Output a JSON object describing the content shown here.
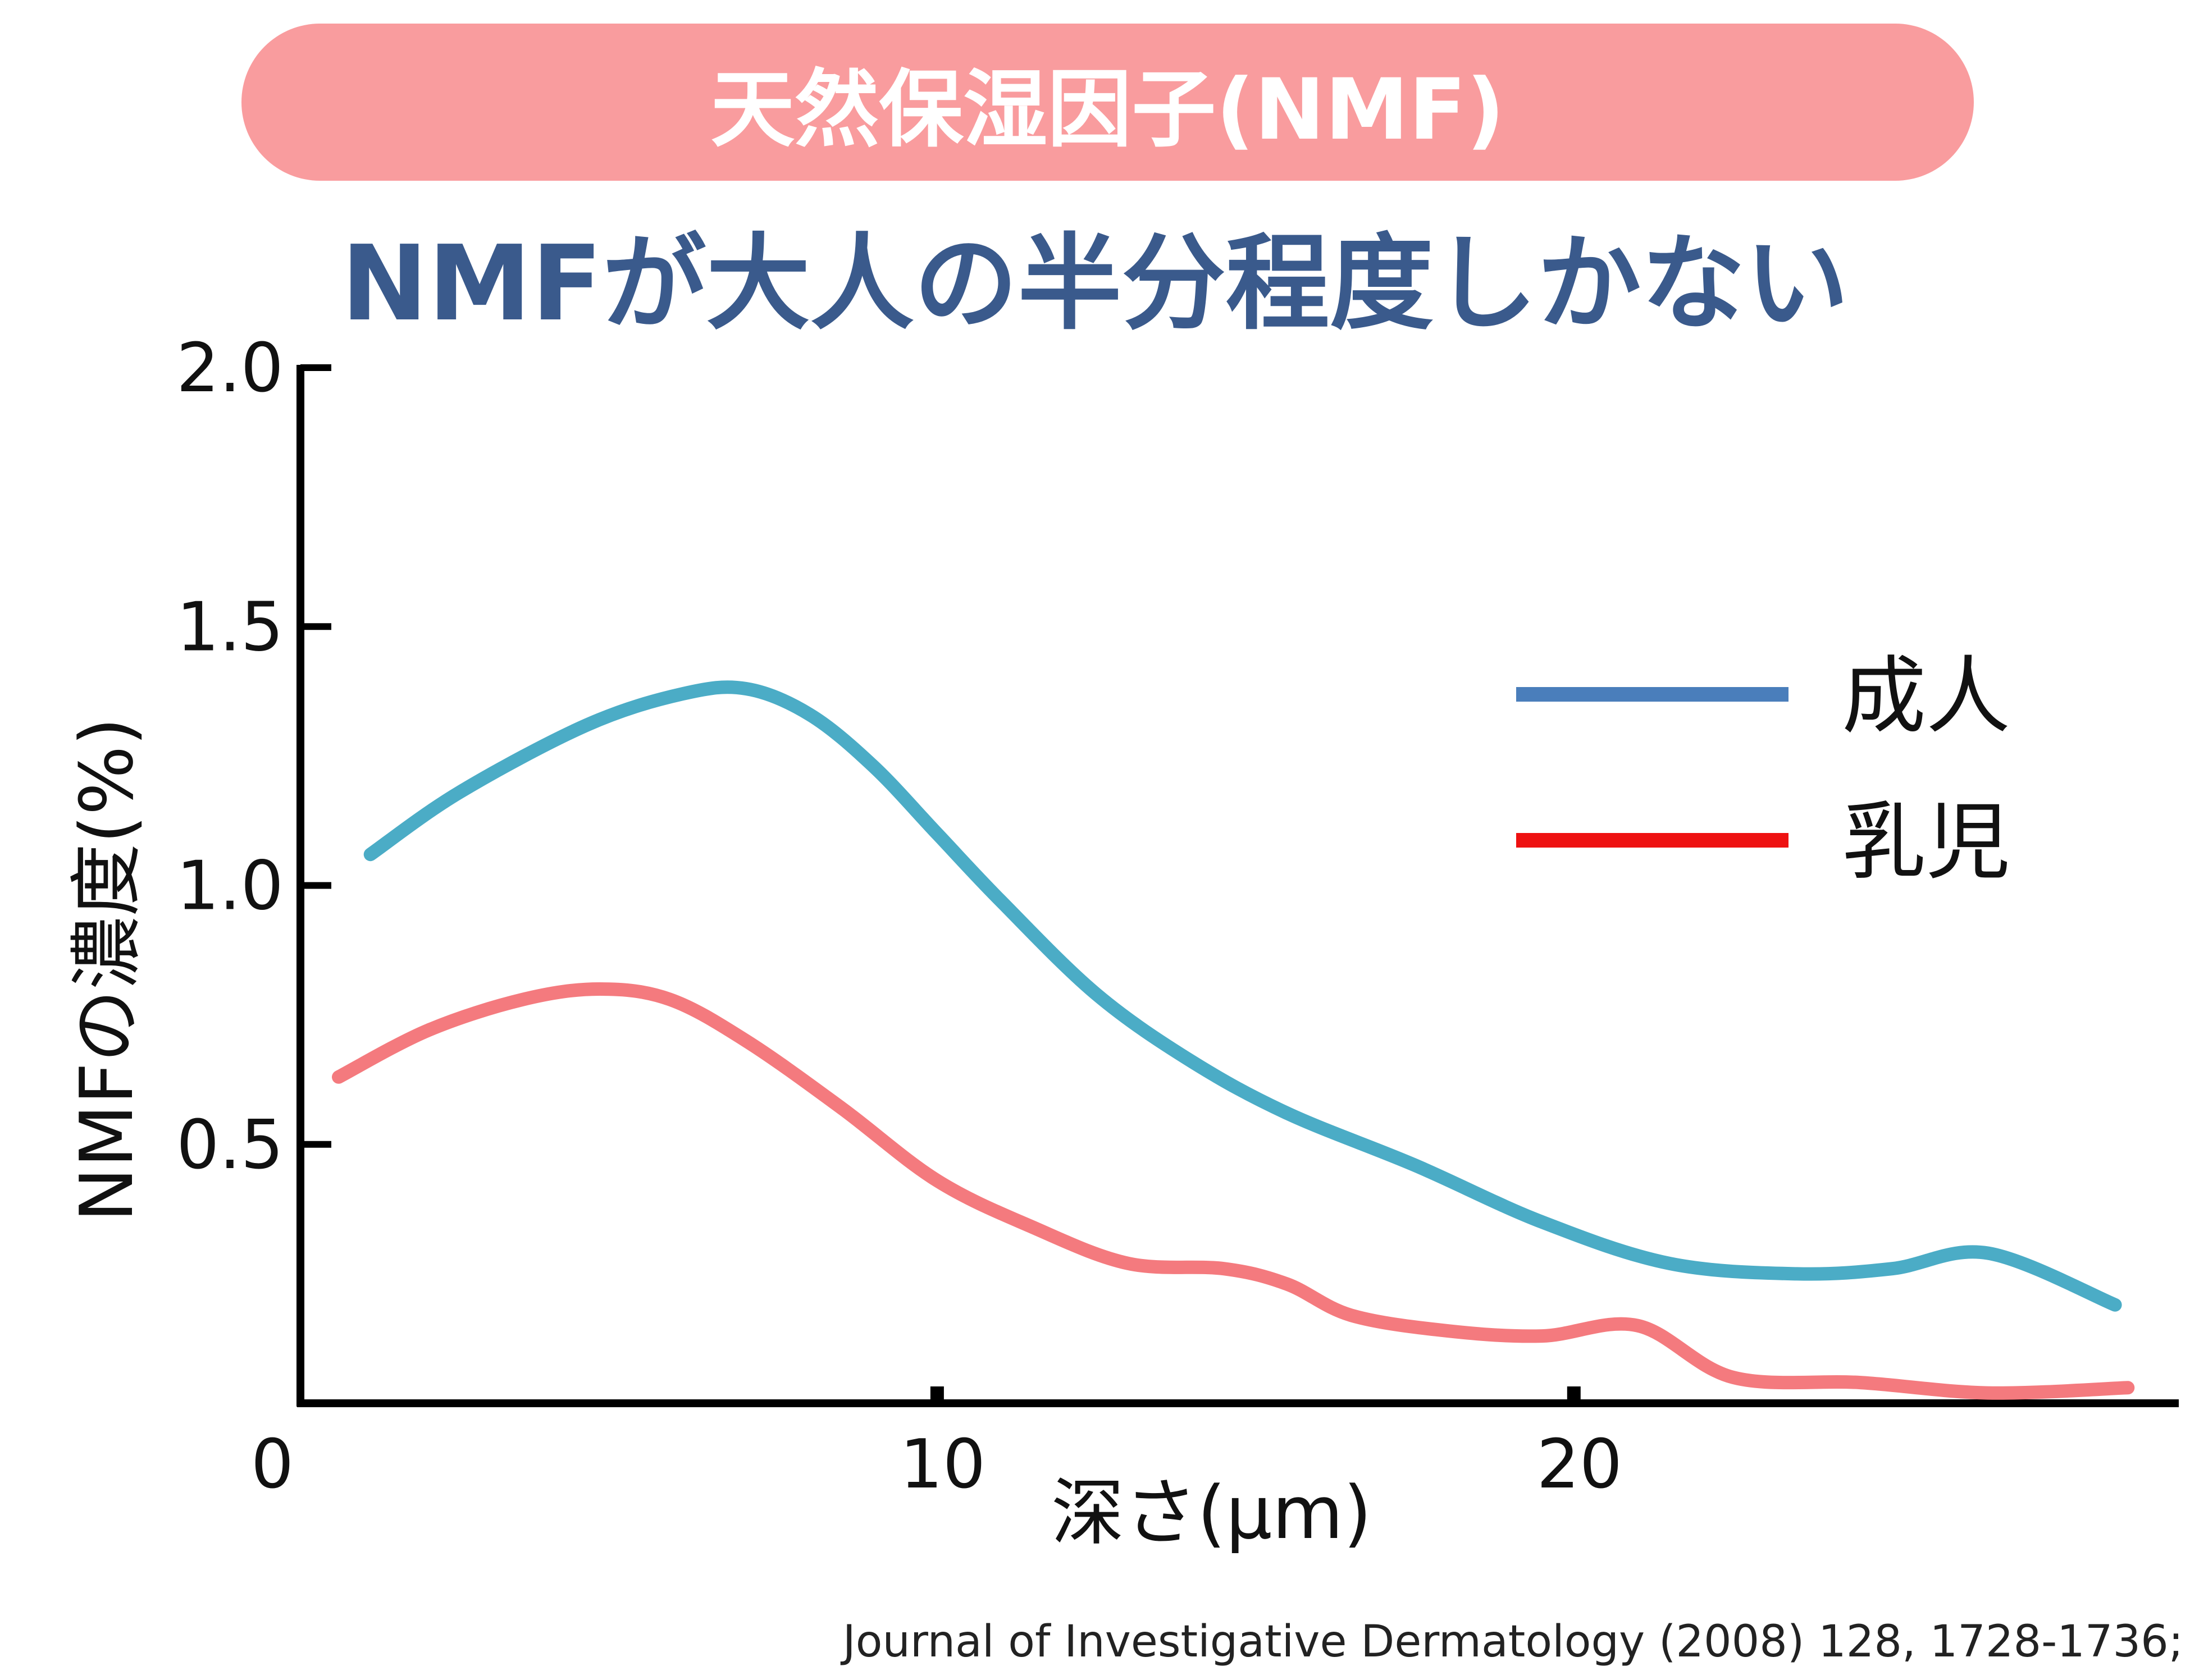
{
  "banner": {
    "title": "天然保湿因子(NMF)"
  },
  "headline": "NMFが大人の半分程度しかない",
  "citation": "Journal of Investigative Dermatology (2008) 128, 1728-1736;",
  "chart_data": {
    "type": "line",
    "title": "NMFが大人の半分程度しかない",
    "xlabel": "深さ(μm)",
    "ylabel": "NMFの濃度(%)",
    "xlim": [
      0,
      29.5
    ],
    "ylim": [
      0,
      2.0
    ],
    "xticks": [
      0,
      10,
      20
    ],
    "xtick_labels": [
      "0",
      "10",
      "20"
    ],
    "yticks": [
      0.5,
      1.0,
      1.5,
      2.0
    ],
    "ytick_labels": [
      "0.5",
      "1.0",
      "1.5",
      "2.0"
    ],
    "grid": false,
    "legend_position": "right",
    "series": [
      {
        "name": "成人",
        "color": "#4bacc6",
        "legend_color": "#4a7ebb",
        "x": [
          1.1,
          2.5,
          4.5,
          6.0,
          7.0,
          8.0,
          9.0,
          10.0,
          11.0,
          12.5,
          14.0,
          15.5,
          17.5,
          19.5,
          21.5,
          23.5,
          25.0,
          26.5,
          28.5
        ],
        "y": [
          1.06,
          1.18,
          1.31,
          1.37,
          1.38,
          1.33,
          1.23,
          1.1,
          0.97,
          0.79,
          0.66,
          0.56,
          0.46,
          0.35,
          0.27,
          0.25,
          0.26,
          0.29,
          0.19
        ]
      },
      {
        "name": "乳児",
        "color": "#f47a7e",
        "legend_color": "#ee1111",
        "x": [
          0.6,
          2.0,
          3.5,
          4.7,
          5.8,
          7.0,
          8.5,
          10.0,
          11.5,
          13.0,
          14.5,
          15.5,
          16.5,
          18.0,
          19.5,
          21.0,
          22.5,
          24.5,
          26.5,
          28.7
        ],
        "y": [
          0.63,
          0.72,
          0.78,
          0.8,
          0.78,
          0.7,
          0.57,
          0.43,
          0.34,
          0.27,
          0.26,
          0.23,
          0.17,
          0.14,
          0.13,
          0.15,
          0.05,
          0.04,
          0.02,
          0.03
        ]
      }
    ]
  }
}
